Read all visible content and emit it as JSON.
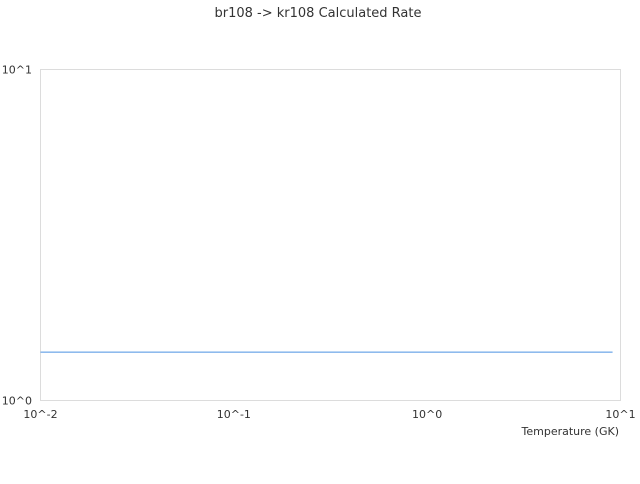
{
  "chart_data": {
    "type": "line",
    "title": "br108 -> kr108 Calculated Rate",
    "xlabel": "Temperature (GK)",
    "ylabel": "",
    "xscale": "log",
    "yscale": "log",
    "xlim": [
      0.01,
      10
    ],
    "ylim": [
      1,
      10
    ],
    "x_ticks": [
      {
        "value": 0.01,
        "label": "10^-2"
      },
      {
        "value": 0.1,
        "label": "10^-1"
      },
      {
        "value": 1,
        "label": "10^0"
      },
      {
        "value": 10,
        "label": "10^1"
      }
    ],
    "y_ticks": [
      {
        "value": 1,
        "label": "10^0"
      },
      {
        "value": 10,
        "label": "10^1"
      }
    ],
    "grid": false,
    "series": [
      {
        "color": "#4a90e2",
        "x": [
          0.01,
          0.1,
          1,
          9.1
        ],
        "y": [
          1.4,
          1.4,
          1.4,
          1.4
        ]
      }
    ]
  }
}
